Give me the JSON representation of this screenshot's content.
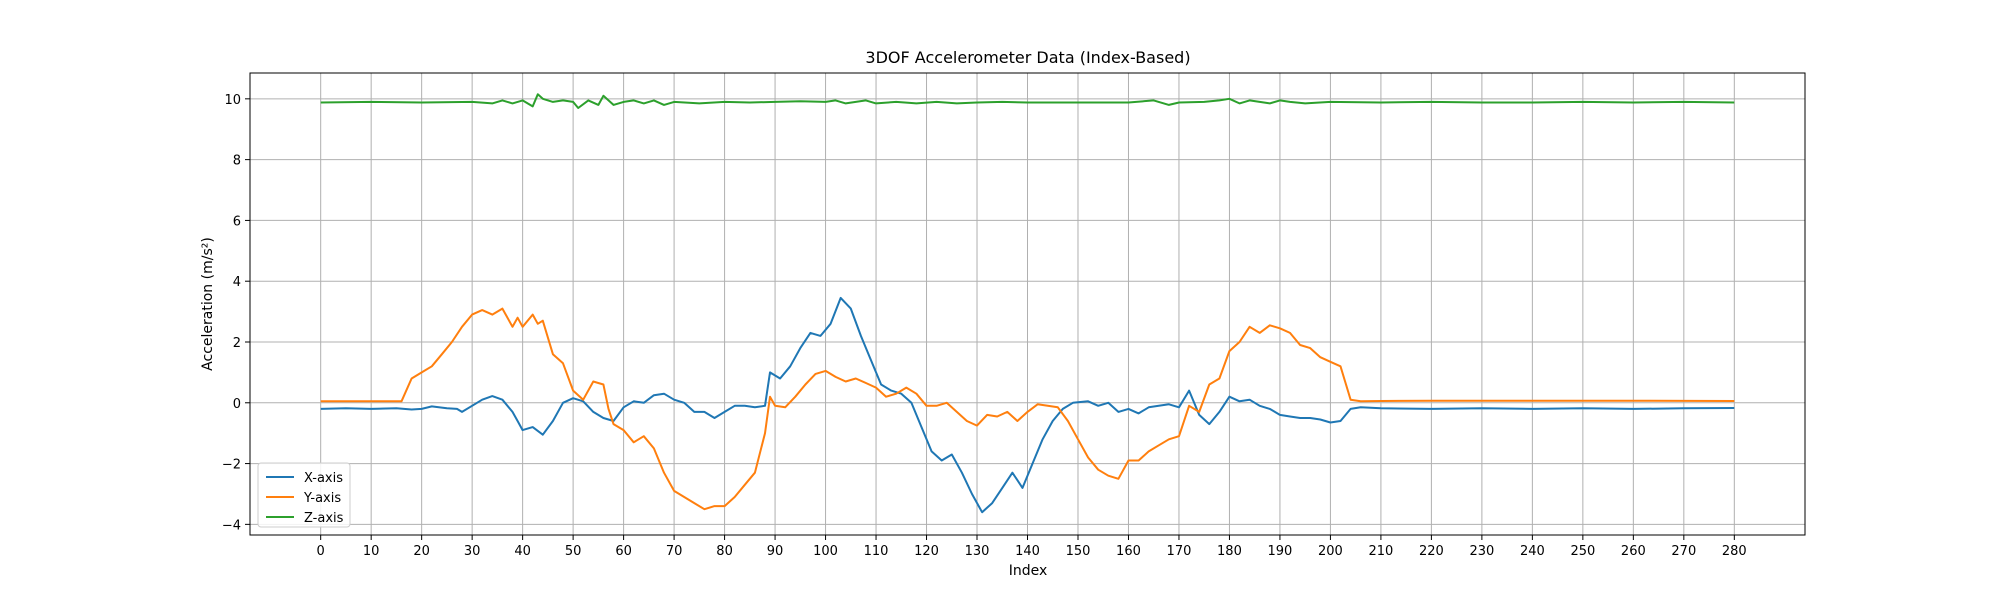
{
  "chart_data": {
    "type": "line",
    "title": "3DOF Accelerometer Data (Index-Based)",
    "xlabel": "Index",
    "ylabel": "Acceleration (m/s²)",
    "xlim": [
      -14,
      294
    ],
    "ylim": [
      -4.35,
      10.85
    ],
    "xticks": [
      0,
      10,
      20,
      30,
      40,
      50,
      60,
      70,
      80,
      90,
      100,
      110,
      120,
      130,
      140,
      150,
      160,
      170,
      180,
      190,
      200,
      210,
      220,
      230,
      240,
      250,
      260,
      270,
      280
    ],
    "yticks": [
      -4,
      -2,
      0,
      2,
      4,
      6,
      8,
      10
    ],
    "grid": true,
    "legend_position": "lower-left",
    "series": [
      {
        "name": "X-axis",
        "color": "#1f77b4",
        "points": [
          [
            0,
            -0.2
          ],
          [
            5,
            -0.18
          ],
          [
            10,
            -0.2
          ],
          [
            15,
            -0.18
          ],
          [
            18,
            -0.22
          ],
          [
            20,
            -0.2
          ],
          [
            22,
            -0.12
          ],
          [
            25,
            -0.18
          ],
          [
            27,
            -0.2
          ],
          [
            28,
            -0.3
          ],
          [
            30,
            -0.1
          ],
          [
            32,
            0.1
          ],
          [
            34,
            0.22
          ],
          [
            36,
            0.1
          ],
          [
            38,
            -0.3
          ],
          [
            39,
            -0.6
          ],
          [
            40,
            -0.9
          ],
          [
            42,
            -0.8
          ],
          [
            44,
            -1.05
          ],
          [
            46,
            -0.6
          ],
          [
            48,
            0.0
          ],
          [
            50,
            0.15
          ],
          [
            52,
            0.05
          ],
          [
            54,
            -0.3
          ],
          [
            56,
            -0.5
          ],
          [
            58,
            -0.6
          ],
          [
            60,
            -0.15
          ],
          [
            62,
            0.05
          ],
          [
            64,
            0.0
          ],
          [
            66,
            0.25
          ],
          [
            68,
            0.3
          ],
          [
            70,
            0.1
          ],
          [
            72,
            0.0
          ],
          [
            74,
            -0.3
          ],
          [
            76,
            -0.3
          ],
          [
            78,
            -0.5
          ],
          [
            80,
            -0.3
          ],
          [
            82,
            -0.1
          ],
          [
            84,
            -0.1
          ],
          [
            86,
            -0.15
          ],
          [
            88,
            -0.1
          ],
          [
            89,
            1.0
          ],
          [
            91,
            0.8
          ],
          [
            93,
            1.2
          ],
          [
            95,
            1.8
          ],
          [
            97,
            2.3
          ],
          [
            99,
            2.2
          ],
          [
            101,
            2.6
          ],
          [
            103,
            3.45
          ],
          [
            105,
            3.1
          ],
          [
            107,
            2.2
          ],
          [
            109,
            1.4
          ],
          [
            111,
            0.6
          ],
          [
            113,
            0.4
          ],
          [
            115,
            0.3
          ],
          [
            117,
            0.0
          ],
          [
            119,
            -0.8
          ],
          [
            121,
            -1.6
          ],
          [
            123,
            -1.9
          ],
          [
            125,
            -1.7
          ],
          [
            127,
            -2.3
          ],
          [
            129,
            -3.0
          ],
          [
            131,
            -3.6
          ],
          [
            133,
            -3.3
          ],
          [
            135,
            -2.8
          ],
          [
            137,
            -2.3
          ],
          [
            139,
            -2.8
          ],
          [
            141,
            -2.0
          ],
          [
            143,
            -1.2
          ],
          [
            145,
            -0.6
          ],
          [
            147,
            -0.2
          ],
          [
            149,
            0.0
          ],
          [
            152,
            0.05
          ],
          [
            154,
            -0.1
          ],
          [
            156,
            0.0
          ],
          [
            158,
            -0.3
          ],
          [
            160,
            -0.2
          ],
          [
            162,
            -0.35
          ],
          [
            164,
            -0.15
          ],
          [
            166,
            -0.1
          ],
          [
            168,
            -0.05
          ],
          [
            170,
            -0.15
          ],
          [
            172,
            0.4
          ],
          [
            174,
            -0.4
          ],
          [
            176,
            -0.7
          ],
          [
            178,
            -0.3
          ],
          [
            180,
            0.2
          ],
          [
            182,
            0.05
          ],
          [
            184,
            0.1
          ],
          [
            186,
            -0.1
          ],
          [
            188,
            -0.2
          ],
          [
            190,
            -0.4
          ],
          [
            192,
            -0.45
          ],
          [
            194,
            -0.5
          ],
          [
            196,
            -0.5
          ],
          [
            198,
            -0.55
          ],
          [
            200,
            -0.65
          ],
          [
            202,
            -0.6
          ],
          [
            204,
            -0.2
          ],
          [
            206,
            -0.15
          ],
          [
            210,
            -0.18
          ],
          [
            220,
            -0.2
          ],
          [
            230,
            -0.18
          ],
          [
            240,
            -0.2
          ],
          [
            250,
            -0.18
          ],
          [
            260,
            -0.2
          ],
          [
            270,
            -0.18
          ],
          [
            280,
            -0.17
          ]
        ]
      },
      {
        "name": "Y-axis",
        "color": "#ff7f0e",
        "points": [
          [
            0,
            0.05
          ],
          [
            10,
            0.05
          ],
          [
            16,
            0.05
          ],
          [
            18,
            0.8
          ],
          [
            20,
            1.0
          ],
          [
            22,
            1.2
          ],
          [
            24,
            1.6
          ],
          [
            26,
            2.0
          ],
          [
            28,
            2.5
          ],
          [
            30,
            2.9
          ],
          [
            32,
            3.05
          ],
          [
            34,
            2.9
          ],
          [
            36,
            3.1
          ],
          [
            38,
            2.5
          ],
          [
            39,
            2.8
          ],
          [
            40,
            2.5
          ],
          [
            42,
            2.9
          ],
          [
            43,
            2.6
          ],
          [
            44,
            2.7
          ],
          [
            46,
            1.6
          ],
          [
            48,
            1.3
          ],
          [
            50,
            0.4
          ],
          [
            52,
            0.1
          ],
          [
            54,
            0.7
          ],
          [
            56,
            0.6
          ],
          [
            57,
            -0.2
          ],
          [
            58,
            -0.7
          ],
          [
            60,
            -0.9
          ],
          [
            62,
            -1.3
          ],
          [
            64,
            -1.1
          ],
          [
            66,
            -1.5
          ],
          [
            68,
            -2.3
          ],
          [
            70,
            -2.9
          ],
          [
            72,
            -3.1
          ],
          [
            74,
            -3.3
          ],
          [
            76,
            -3.5
          ],
          [
            78,
            -3.4
          ],
          [
            80,
            -3.4
          ],
          [
            82,
            -3.1
          ],
          [
            84,
            -2.7
          ],
          [
            86,
            -2.3
          ],
          [
            88,
            -1.0
          ],
          [
            89,
            0.2
          ],
          [
            90,
            -0.1
          ],
          [
            92,
            -0.15
          ],
          [
            94,
            0.2
          ],
          [
            96,
            0.6
          ],
          [
            98,
            0.95
          ],
          [
            100,
            1.05
          ],
          [
            102,
            0.85
          ],
          [
            104,
            0.7
          ],
          [
            106,
            0.8
          ],
          [
            108,
            0.65
          ],
          [
            110,
            0.5
          ],
          [
            112,
            0.2
          ],
          [
            114,
            0.3
          ],
          [
            116,
            0.5
          ],
          [
            118,
            0.3
          ],
          [
            120,
            -0.1
          ],
          [
            122,
            -0.1
          ],
          [
            124,
            0.0
          ],
          [
            126,
            -0.3
          ],
          [
            128,
            -0.6
          ],
          [
            130,
            -0.75
          ],
          [
            132,
            -0.4
          ],
          [
            134,
            -0.45
          ],
          [
            136,
            -0.3
          ],
          [
            138,
            -0.6
          ],
          [
            140,
            -0.3
          ],
          [
            142,
            -0.05
          ],
          [
            144,
            -0.1
          ],
          [
            146,
            -0.15
          ],
          [
            148,
            -0.6
          ],
          [
            150,
            -1.2
          ],
          [
            152,
            -1.8
          ],
          [
            154,
            -2.2
          ],
          [
            156,
            -2.4
          ],
          [
            158,
            -2.5
          ],
          [
            160,
            -1.9
          ],
          [
            162,
            -1.9
          ],
          [
            164,
            -1.6
          ],
          [
            166,
            -1.4
          ],
          [
            168,
            -1.2
          ],
          [
            170,
            -1.1
          ],
          [
            172,
            -0.1
          ],
          [
            174,
            -0.3
          ],
          [
            176,
            0.6
          ],
          [
            178,
            0.8
          ],
          [
            180,
            1.7
          ],
          [
            182,
            2.0
          ],
          [
            184,
            2.5
          ],
          [
            186,
            2.3
          ],
          [
            188,
            2.55
          ],
          [
            190,
            2.45
          ],
          [
            192,
            2.3
          ],
          [
            194,
            1.9
          ],
          [
            196,
            1.8
          ],
          [
            198,
            1.5
          ],
          [
            200,
            1.35
          ],
          [
            202,
            1.2
          ],
          [
            204,
            0.1
          ],
          [
            206,
            0.05
          ],
          [
            210,
            0.06
          ],
          [
            220,
            0.07
          ],
          [
            240,
            0.07
          ],
          [
            260,
            0.07
          ],
          [
            280,
            0.06
          ]
        ]
      },
      {
        "name": "Z-axis",
        "color": "#2ca02c",
        "points": [
          [
            0,
            9.88
          ],
          [
            10,
            9.9
          ],
          [
            20,
            9.88
          ],
          [
            30,
            9.9
          ],
          [
            34,
            9.85
          ],
          [
            36,
            9.95
          ],
          [
            38,
            9.85
          ],
          [
            40,
            9.95
          ],
          [
            42,
            9.75
          ],
          [
            43,
            10.15
          ],
          [
            44,
            10.0
          ],
          [
            46,
            9.9
          ],
          [
            48,
            9.95
          ],
          [
            50,
            9.9
          ],
          [
            51,
            9.7
          ],
          [
            53,
            9.95
          ],
          [
            55,
            9.8
          ],
          [
            56,
            10.1
          ],
          [
            58,
            9.8
          ],
          [
            60,
            9.9
          ],
          [
            62,
            9.95
          ],
          [
            64,
            9.85
          ],
          [
            66,
            9.95
          ],
          [
            68,
            9.8
          ],
          [
            70,
            9.9
          ],
          [
            75,
            9.85
          ],
          [
            80,
            9.9
          ],
          [
            85,
            9.88
          ],
          [
            90,
            9.9
          ],
          [
            95,
            9.92
          ],
          [
            100,
            9.9
          ],
          [
            102,
            9.95
          ],
          [
            104,
            9.85
          ],
          [
            106,
            9.9
          ],
          [
            108,
            9.95
          ],
          [
            110,
            9.85
          ],
          [
            114,
            9.9
          ],
          [
            118,
            9.85
          ],
          [
            122,
            9.9
          ],
          [
            126,
            9.85
          ],
          [
            130,
            9.88
          ],
          [
            135,
            9.9
          ],
          [
            140,
            9.88
          ],
          [
            150,
            9.88
          ],
          [
            160,
            9.88
          ],
          [
            165,
            9.95
          ],
          [
            168,
            9.8
          ],
          [
            170,
            9.88
          ],
          [
            175,
            9.9
          ],
          [
            178,
            9.95
          ],
          [
            180,
            10.0
          ],
          [
            182,
            9.85
          ],
          [
            184,
            9.95
          ],
          [
            186,
            9.9
          ],
          [
            188,
            9.85
          ],
          [
            190,
            9.95
          ],
          [
            192,
            9.9
          ],
          [
            195,
            9.85
          ],
          [
            200,
            9.9
          ],
          [
            210,
            9.88
          ],
          [
            220,
            9.9
          ],
          [
            230,
            9.88
          ],
          [
            240,
            9.88
          ],
          [
            250,
            9.9
          ],
          [
            260,
            9.88
          ],
          [
            270,
            9.9
          ],
          [
            280,
            9.88
          ]
        ]
      }
    ]
  }
}
